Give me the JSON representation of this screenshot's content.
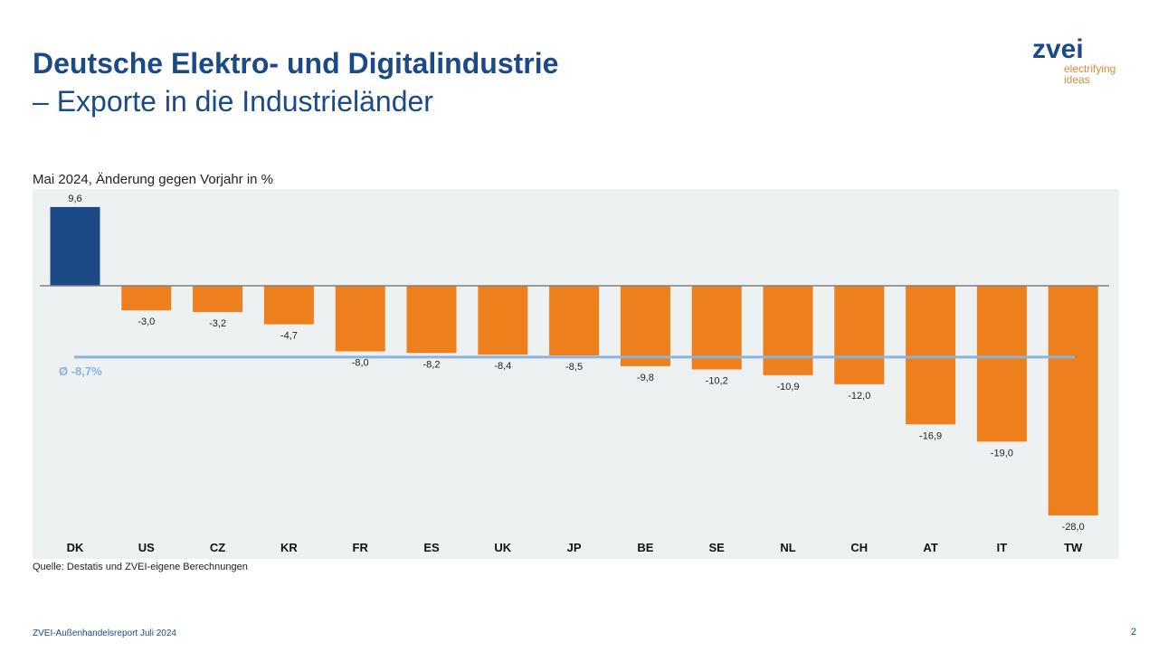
{
  "header": {
    "title": "Deutsche Elektro- und Digitalindustrie",
    "subtitle": "– Exporte in die Industrieländer"
  },
  "logo": {
    "name": "zvei",
    "tagline1": "electrifying",
    "tagline2": "ideas"
  },
  "chart_data": {
    "type": "bar",
    "title": "Mai 2024, Änderung gegen Vorjahr in %",
    "categories": [
      "DK",
      "US",
      "CZ",
      "KR",
      "FR",
      "ES",
      "UK",
      "JP",
      "BE",
      "SE",
      "NL",
      "CH",
      "AT",
      "IT",
      "TW"
    ],
    "values": [
      9.6,
      -3.0,
      -3.2,
      -4.7,
      -8.0,
      -8.2,
      -8.4,
      -8.5,
      -9.8,
      -10.2,
      -10.9,
      -12.0,
      -16.9,
      -19.0,
      -28.0
    ],
    "value_labels": [
      "9,6",
      "-3,0",
      "-3,2",
      "-4,7",
      "-8,0",
      "-8,2",
      "-8,4",
      "-8,5",
      "-9,8",
      "-10,2",
      "-10,9",
      "-12,0",
      "-16,9",
      "-19,0",
      "-28,0"
    ],
    "average": -8.7,
    "average_label": "Ø -8,7%",
    "colors": {
      "positive": "#1b4a87",
      "negative": "#ee7f1d",
      "average": "#8db3e2",
      "background": "#eef1f2"
    }
  },
  "source": "Quelle: Destatis und ZVEI-eigene Berechnungen",
  "footer": "ZVEI-Außenhandelsreport  Juli 2024",
  "page": "2"
}
